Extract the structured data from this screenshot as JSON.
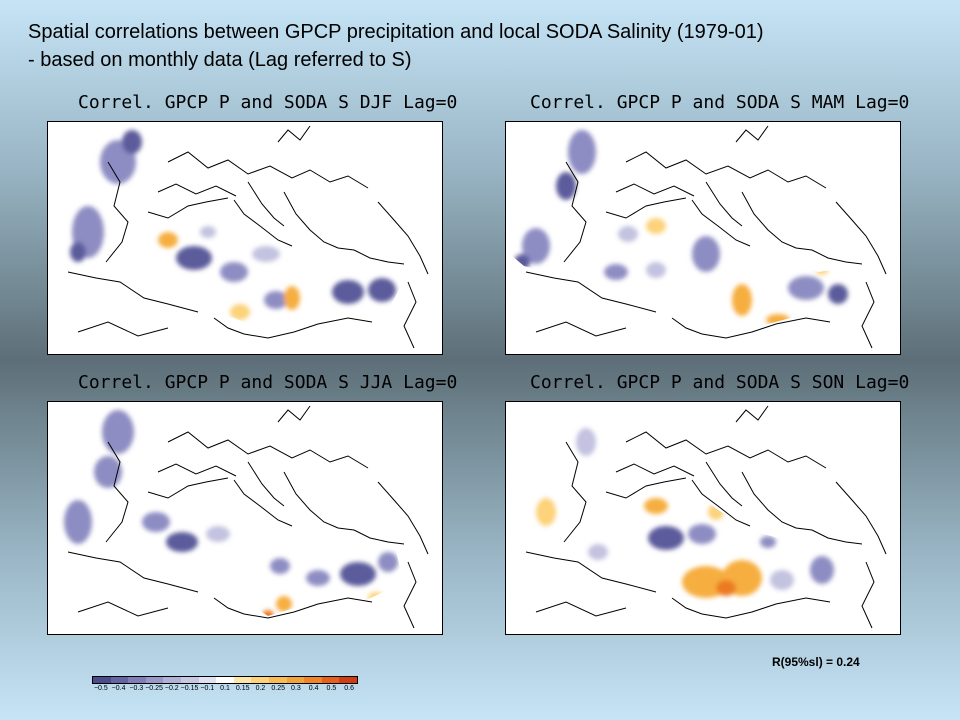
{
  "slide": {
    "title_line1": "Spatial correlations between GPCP precipitation and local SODA Salinity (1979-01)",
    "title_line2": "- based on monthly data (Lag referred to S)"
  },
  "panels": [
    {
      "title": "Correl. GPCP P and SODA S DJF Lag=0",
      "season": "DJF"
    },
    {
      "title": "Correl. GPCP P and SODA S MAM Lag=0",
      "season": "MAM"
    },
    {
      "title": "Correl. GPCP P and SODA S JJA Lag=0",
      "season": "JJA"
    },
    {
      "title": "Correl. GPCP P and SODA S SON Lag=0",
      "season": "SON"
    }
  ],
  "significance": {
    "label": "R(95%sl) = 0.24"
  },
  "colorbar": {
    "ticks": [
      "−0.5",
      "−0.4",
      "−0.3",
      "−0.25",
      "−0.2",
      "−0.15",
      "−0.1",
      "0.1",
      "0.15",
      "0.2",
      "0.25",
      "0.3",
      "0.4",
      "0.5",
      "0.6"
    ],
    "colors": [
      "#4b4a8c",
      "#6463a3",
      "#7f7eb8",
      "#9897c7",
      "#b1b0d6",
      "#c9c8e4",
      "#e2e1f1",
      "#ffffff",
      "#fde7a8",
      "#fcd27a",
      "#f8bb55",
      "#f4a23c",
      "#f08428",
      "#e5601c",
      "#d23c12"
    ]
  },
  "palette": {
    "neg_strong": "#5c5b9c",
    "neg_mid": "#8e8dc3",
    "neg_weak": "#c3c2e0",
    "pos_weak": "#fcd27a",
    "pos_mid": "#f6ae3f",
    "pos_strong": "#ec7a23"
  }
}
